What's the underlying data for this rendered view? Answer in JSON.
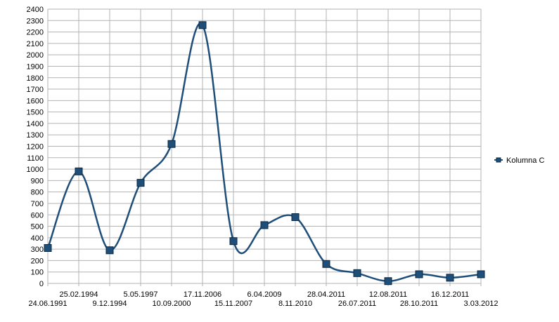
{
  "chart_data": {
    "type": "line",
    "title": "",
    "xlabel": "",
    "ylabel": "",
    "ylim": [
      0,
      2400
    ],
    "y_ticks": [
      0,
      100,
      200,
      300,
      400,
      500,
      600,
      700,
      800,
      900,
      1000,
      1100,
      1200,
      1300,
      1400,
      1500,
      1600,
      1700,
      1800,
      1900,
      2000,
      2100,
      2200,
      2300,
      2400
    ],
    "grid": true,
    "legend_position": "right",
    "smoothed": true,
    "series_color": "#1f4e79",
    "marker_color": "#1f4e79",
    "categories": [
      "24.06.1991",
      "25.02.1994",
      "9.12.1994",
      "5.05.1997",
      "10.09.2000",
      "17.11.2006",
      "15.11.2007",
      "6.04.2009",
      "8.11.2010",
      "28.04.2011",
      "26.07.2011",
      "12.08.2011",
      "28.10.2011",
      "16.12.2011",
      "3.03.2012"
    ],
    "series": [
      {
        "name": "Kolumna C",
        "values": [
          310,
          980,
          290,
          880,
          1220,
          2260,
          370,
          510,
          580,
          170,
          90,
          20,
          80,
          50,
          80
        ]
      }
    ]
  }
}
